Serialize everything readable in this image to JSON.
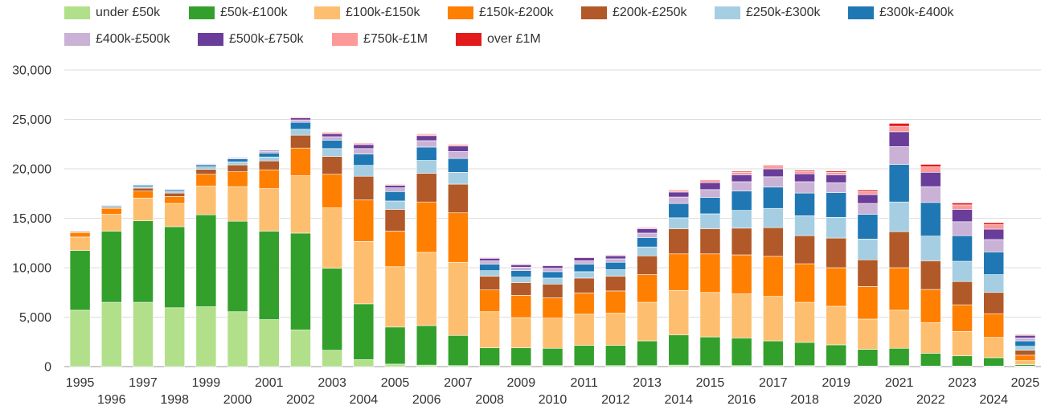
{
  "chart_data": {
    "type": "bar",
    "stacked": true,
    "title": "",
    "xlabel": "",
    "ylabel": "",
    "ylim": [
      0,
      30000
    ],
    "yticks": [
      0,
      5000,
      10000,
      15000,
      20000,
      25000,
      30000
    ],
    "ytick_labels": [
      "0",
      "5,000",
      "10,000",
      "15,000",
      "20,000",
      "25,000",
      "30,000"
    ],
    "grid": true,
    "legend_position": "top",
    "categories": [
      "1995",
      "1996",
      "1997",
      "1998",
      "1999",
      "2000",
      "2001",
      "2002",
      "2003",
      "2004",
      "2005",
      "2006",
      "2007",
      "2008",
      "2009",
      "2010",
      "2011",
      "2012",
      "2013",
      "2014",
      "2015",
      "2016",
      "2017",
      "2018",
      "2019",
      "2020",
      "2021",
      "2022",
      "2023",
      "2024",
      "2025"
    ],
    "series": [
      {
        "name": "under £50k",
        "color": "#b2df8a",
        "values": [
          5700,
          6500,
          6500,
          5950,
          6050,
          5550,
          4750,
          3700,
          1650,
          700,
          250,
          150,
          100,
          100,
          100,
          100,
          100,
          100,
          100,
          150,
          100,
          100,
          100,
          100,
          100,
          50,
          100,
          50,
          50,
          50,
          50
        ]
      },
      {
        "name": "£50k-£100k",
        "color": "#33a02c",
        "values": [
          6050,
          7200,
          8250,
          8200,
          9300,
          9150,
          8950,
          9800,
          8300,
          5650,
          3750,
          4000,
          3050,
          1800,
          1800,
          1750,
          2050,
          2050,
          2500,
          3050,
          2900,
          2800,
          2500,
          2350,
          2100,
          1700,
          1750,
          1300,
          1050,
          850,
          150
        ]
      },
      {
        "name": "£100k-£150k",
        "color": "#fdbf6f",
        "values": [
          1350,
          1700,
          2300,
          2350,
          2900,
          3500,
          4300,
          5800,
          6100,
          6300,
          6100,
          7400,
          7400,
          3650,
          3050,
          3050,
          3150,
          3250,
          3900,
          4500,
          4500,
          4450,
          4500,
          4050,
          3900,
          3050,
          3850,
          3100,
          2450,
          2050,
          400
        ]
      },
      {
        "name": "£150k-£200k",
        "color": "#ff7f00",
        "values": [
          450,
          600,
          700,
          700,
          1200,
          1500,
          1900,
          2800,
          3400,
          4200,
          3600,
          5100,
          5000,
          2200,
          2250,
          2050,
          2150,
          2250,
          2800,
          3700,
          3900,
          3950,
          4050,
          3900,
          3900,
          3300,
          4300,
          3350,
          2700,
          2400,
          550
        ]
      },
      {
        "name": "£200k-£250k",
        "color": "#b15928",
        "values": [
          100,
          100,
          300,
          350,
          500,
          700,
          900,
          1300,
          1800,
          2400,
          2200,
          2900,
          2900,
          1400,
          1300,
          1400,
          1500,
          1500,
          1900,
          2550,
          2550,
          2700,
          2900,
          2850,
          3000,
          2700,
          3650,
          2900,
          2350,
          2150,
          500
        ]
      },
      {
        "name": "£250k-£300k",
        "color": "#a6cee3",
        "values": [
          50,
          100,
          150,
          150,
          250,
          300,
          400,
          600,
          800,
          1100,
          850,
          1300,
          1200,
          550,
          550,
          600,
          650,
          650,
          900,
          1100,
          1500,
          1800,
          1950,
          2000,
          2100,
          2100,
          3000,
          2500,
          2050,
          1800,
          400
        ]
      },
      {
        "name": "£300k-£400k",
        "color": "#1f78b4",
        "values": [
          50,
          100,
          150,
          150,
          200,
          300,
          400,
          700,
          850,
          1150,
          950,
          1350,
          1400,
          650,
          650,
          650,
          750,
          750,
          950,
          1450,
          1650,
          1950,
          2150,
          2300,
          2500,
          2500,
          3800,
          3400,
          2600,
          2300,
          550
        ]
      },
      {
        "name": "£400k-£500k",
        "color": "#cab2d6",
        "values": [
          20,
          50,
          60,
          80,
          80,
          110,
          150,
          250,
          350,
          550,
          380,
          650,
          700,
          350,
          350,
          350,
          350,
          350,
          450,
          650,
          800,
          950,
          1050,
          1150,
          1000,
          1100,
          1800,
          1600,
          1400,
          1250,
          300
        ]
      },
      {
        "name": "£500k-£750k",
        "color": "#6a3d9a",
        "values": [
          20,
          40,
          50,
          60,
          50,
          70,
          110,
          200,
          300,
          400,
          250,
          500,
          550,
          250,
          250,
          250,
          300,
          300,
          450,
          500,
          700,
          700,
          800,
          800,
          800,
          900,
          1500,
          1450,
          1250,
          1050,
          250
        ]
      },
      {
        "name": "£750k-£1M",
        "color": "#fb9a99",
        "values": [
          10,
          20,
          30,
          30,
          30,
          40,
          60,
          100,
          150,
          150,
          100,
          150,
          150,
          80,
          80,
          80,
          80,
          80,
          100,
          150,
          200,
          250,
          250,
          250,
          250,
          300,
          550,
          550,
          450,
          450,
          100
        ]
      },
      {
        "name": "over £1M",
        "color": "#e31a1c",
        "values": [
          5,
          10,
          10,
          10,
          15,
          20,
          25,
          40,
          50,
          50,
          40,
          60,
          60,
          30,
          30,
          30,
          30,
          30,
          50,
          70,
          80,
          100,
          110,
          110,
          120,
          150,
          300,
          250,
          200,
          200,
          50
        ]
      }
    ]
  }
}
